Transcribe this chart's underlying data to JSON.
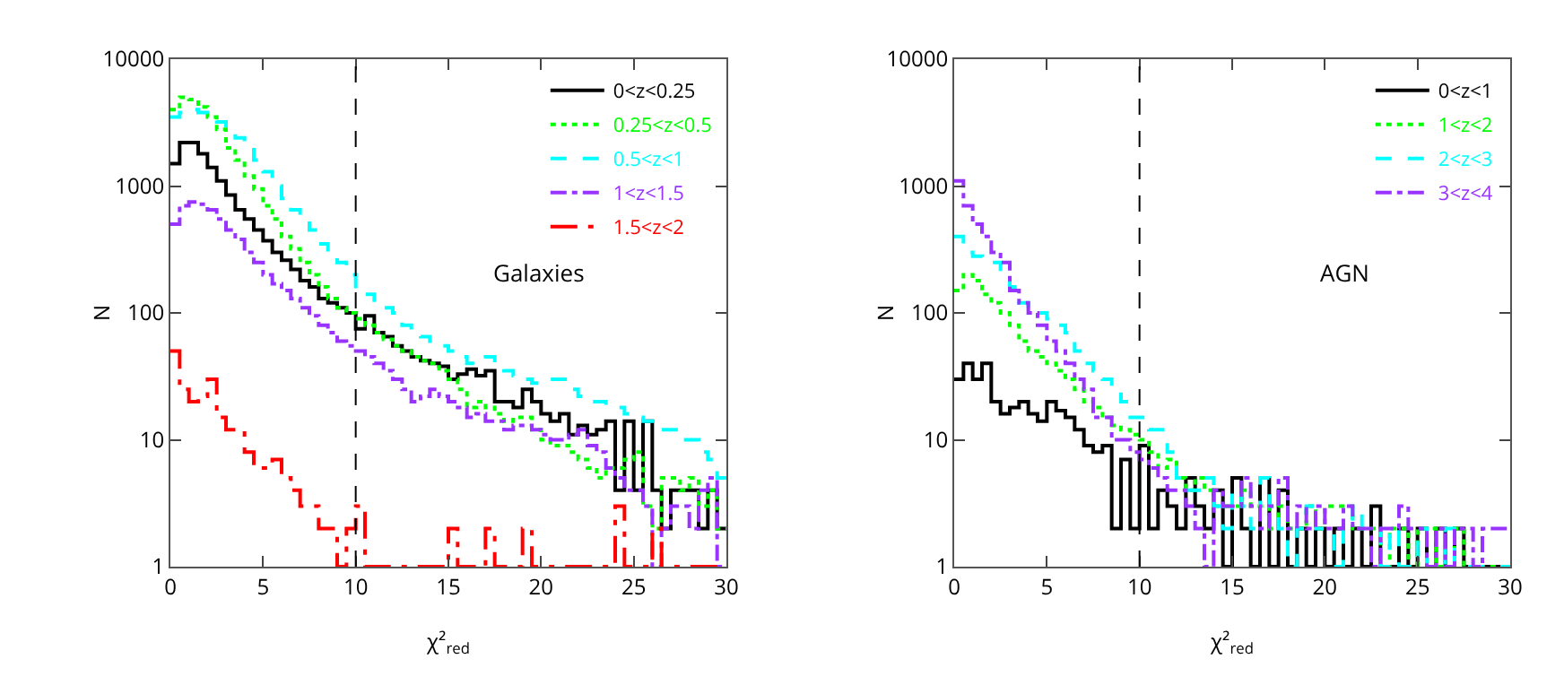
{
  "chart_data": [
    {
      "type": "histogram",
      "xlabel": "χ²$_{red}$",
      "ylabel": "N",
      "log": "y",
      "xlim": [
        0,
        30
      ],
      "ylim": [
        1,
        10000
      ],
      "xticks": [
        0,
        5,
        10,
        15,
        20,
        25,
        30
      ],
      "yticks": [
        1,
        10,
        100,
        1000,
        10000
      ],
      "legend": "top right",
      "annotations": [
        "Galaxies"
      ],
      "ref_lines": [
        {
          "axis": "x",
          "value": 10,
          "line_style": "dashed",
          "color": "#000000"
        }
      ],
      "bins": [
        0,
        0.5,
        1,
        1.5,
        2,
        2.5,
        3,
        3.5,
        4,
        4.5,
        5,
        5.5,
        6,
        6.5,
        7,
        7.5,
        8,
        8.5,
        9,
        9.5,
        10,
        10.5,
        11,
        11.5,
        12,
        12.5,
        13,
        13.5,
        14,
        14.5,
        15,
        15.5,
        16,
        16.5,
        17,
        17.5,
        18,
        18.5,
        19,
        19.5,
        20,
        20.5,
        21,
        21.5,
        22,
        22.5,
        23,
        23.5,
        24,
        24.5,
        25,
        25.5,
        26,
        26.5,
        27,
        27.5,
        28,
        28.5,
        29,
        29.5,
        30
      ],
      "series": [
        {
          "name": "0<z<0.25",
          "color": "#000000",
          "line_style": "solid",
          "values": [
            1500,
            2200,
            2200,
            1800,
            1400,
            1100,
            850,
            650,
            550,
            450,
            370,
            300,
            260,
            220,
            180,
            160,
            130,
            120,
            110,
            100,
            75,
            95,
            70,
            65,
            55,
            50,
            45,
            42,
            40,
            38,
            30,
            33,
            36,
            32,
            35,
            20,
            20,
            18,
            25,
            20,
            16,
            14,
            16,
            11,
            13,
            11,
            12,
            14,
            4,
            14,
            4,
            14,
            4,
            2,
            4,
            4,
            4,
            2,
            4,
            2
          ]
        },
        {
          "name": "0.25<z<0.5",
          "color": "#00ff00",
          "line_style": "dotted",
          "values": [
            4000,
            5000,
            4800,
            4200,
            3500,
            2800,
            2000,
            1600,
            1200,
            950,
            700,
            550,
            400,
            320,
            250,
            200,
            160,
            130,
            110,
            100,
            90,
            80,
            70,
            62,
            55,
            50,
            45,
            42,
            40,
            35,
            30,
            25,
            18,
            20,
            18,
            16,
            14,
            15,
            15,
            12,
            10,
            9,
            9,
            8,
            7,
            6,
            5,
            6,
            6,
            7,
            8,
            3,
            2,
            5,
            5,
            4,
            5,
            3,
            4,
            2
          ]
        },
        {
          "name": "0.5<z<1",
          "color": "#00ffff",
          "line_style": "dashed",
          "values": [
            3500,
            3800,
            4000,
            3800,
            3500,
            3200,
            2800,
            2400,
            2000,
            1600,
            1300,
            1000,
            800,
            650,
            550,
            450,
            350,
            300,
            250,
            200,
            150,
            140,
            120,
            110,
            100,
            80,
            70,
            65,
            60,
            55,
            50,
            45,
            40,
            42,
            45,
            38,
            35,
            32,
            30,
            28,
            28,
            30,
            30,
            25,
            22,
            20,
            20,
            18,
            18,
            16,
            15,
            14,
            14,
            12,
            12,
            10,
            10,
            8,
            7,
            5
          ]
        },
        {
          "name": "1<z<1.5",
          "color": "#9933ff",
          "line_style": "dashdot",
          "values": [
            500,
            700,
            750,
            720,
            650,
            550,
            450,
            380,
            300,
            250,
            200,
            170,
            150,
            130,
            110,
            95,
            80,
            70,
            60,
            55,
            50,
            45,
            40,
            35,
            30,
            25,
            20,
            22,
            25,
            22,
            20,
            18,
            15,
            16,
            14,
            14,
            12,
            13,
            13,
            12,
            11,
            10,
            10,
            11,
            12,
            9,
            8,
            6,
            5,
            4,
            4,
            3,
            1,
            2,
            3,
            3,
            2,
            4,
            5,
            1
          ]
        },
        {
          "name": "1.5<z<2",
          "color": "#ff0000",
          "line_style": "dashdotdot",
          "values": [
            50,
            25,
            20,
            22,
            30,
            15,
            12,
            12,
            8,
            6,
            6,
            7,
            5,
            4,
            3,
            3,
            2,
            2,
            1,
            2,
            3,
            1,
            1,
            1,
            1,
            1,
            1,
            1,
            1,
            1,
            2,
            1,
            1,
            1,
            2,
            1,
            1,
            1,
            2,
            1,
            1,
            1,
            1,
            1,
            1,
            1,
            1,
            1,
            3,
            1,
            1,
            1,
            2,
            1,
            1,
            1,
            1,
            1,
            1,
            1
          ]
        }
      ]
    },
    {
      "type": "histogram",
      "xlabel": "χ²$_{red}$",
      "ylabel": "N",
      "log": "y",
      "xlim": [
        0,
        30
      ],
      "ylim": [
        1,
        10000
      ],
      "xticks": [
        0,
        5,
        10,
        15,
        20,
        25,
        30
      ],
      "yticks": [
        1,
        10,
        100,
        1000,
        10000
      ],
      "legend": "top right",
      "annotations": [
        "AGN"
      ],
      "ref_lines": [
        {
          "axis": "x",
          "value": 10,
          "line_style": "dashed",
          "color": "#000000"
        }
      ],
      "bins": [
        0,
        0.5,
        1,
        1.5,
        2,
        2.5,
        3,
        3.5,
        4,
        4.5,
        5,
        5.5,
        6,
        6.5,
        7,
        7.5,
        8,
        8.5,
        9,
        9.5,
        10,
        10.5,
        11,
        11.5,
        12,
        12.5,
        13,
        13.5,
        14,
        14.5,
        15,
        15.5,
        16,
        16.5,
        17,
        17.5,
        18,
        18.5,
        19,
        19.5,
        20,
        20.5,
        21,
        21.5,
        22,
        22.5,
        23,
        23.5,
        24,
        24.5,
        25,
        25.5,
        26,
        26.5,
        27,
        27.5,
        28,
        28.5,
        29,
        29.5,
        30
      ],
      "series": [
        {
          "name": "0<z<1",
          "color": "#000000",
          "line_style": "solid",
          "values": [
            30,
            40,
            30,
            40,
            20,
            16,
            18,
            20,
            16,
            14,
            20,
            17,
            15,
            12,
            9,
            8,
            9,
            2,
            7,
            2,
            9,
            2,
            4,
            3,
            2,
            5,
            3,
            2,
            4,
            1,
            5,
            2,
            1,
            5,
            1,
            4,
            1,
            2,
            1,
            2,
            1,
            2,
            1,
            2,
            1,
            3,
            1,
            1,
            2,
            1,
            2,
            1,
            2,
            1,
            2,
            1,
            1,
            1,
            1,
            1
          ]
        },
        {
          "name": "1<z<2",
          "color": "#00ff00",
          "line_style": "dotted",
          "values": [
            150,
            200,
            180,
            140,
            120,
            100,
            80,
            60,
            50,
            45,
            40,
            35,
            30,
            25,
            20,
            18,
            15,
            13,
            12,
            11,
            10,
            8,
            6,
            7,
            5,
            4,
            5,
            4,
            3,
            3,
            3,
            4,
            3,
            3,
            2,
            3,
            2,
            2,
            3,
            2,
            3,
            3,
            3,
            2,
            2,
            2,
            1,
            2,
            2,
            1,
            2,
            2,
            1,
            1,
            2,
            1,
            1,
            1,
            1,
            1
          ]
        },
        {
          "name": "2<z<3",
          "color": "#00ffff",
          "line_style": "dashed",
          "values": [
            400,
            300,
            280,
            250,
            250,
            200,
            160,
            120,
            110,
            100,
            90,
            80,
            70,
            50,
            40,
            35,
            30,
            25,
            20,
            15,
            15,
            12,
            12,
            8,
            5,
            4,
            4,
            5,
            3,
            2,
            4,
            3,
            2,
            5,
            3,
            2,
            1,
            2,
            3,
            2,
            2,
            1,
            2,
            3,
            2,
            2,
            1,
            2,
            1,
            1,
            2,
            1,
            1,
            2,
            1,
            1,
            1,
            1,
            1,
            1
          ]
        },
        {
          "name": "3<z<4",
          "color": "#9933ff",
          "line_style": "dashdot",
          "values": [
            1100,
            700,
            500,
            400,
            300,
            250,
            150,
            120,
            100,
            80,
            60,
            50,
            40,
            30,
            25,
            15,
            15,
            10,
            10,
            8,
            7,
            6,
            5,
            4,
            4,
            3,
            2,
            1,
            4,
            3,
            3,
            5,
            3,
            2,
            3,
            5,
            2,
            3,
            2,
            3,
            2,
            2,
            3,
            2,
            2,
            1,
            2,
            2,
            3,
            2,
            2,
            1,
            2,
            1,
            2,
            2,
            1,
            2,
            2,
            2
          ]
        }
      ]
    }
  ]
}
